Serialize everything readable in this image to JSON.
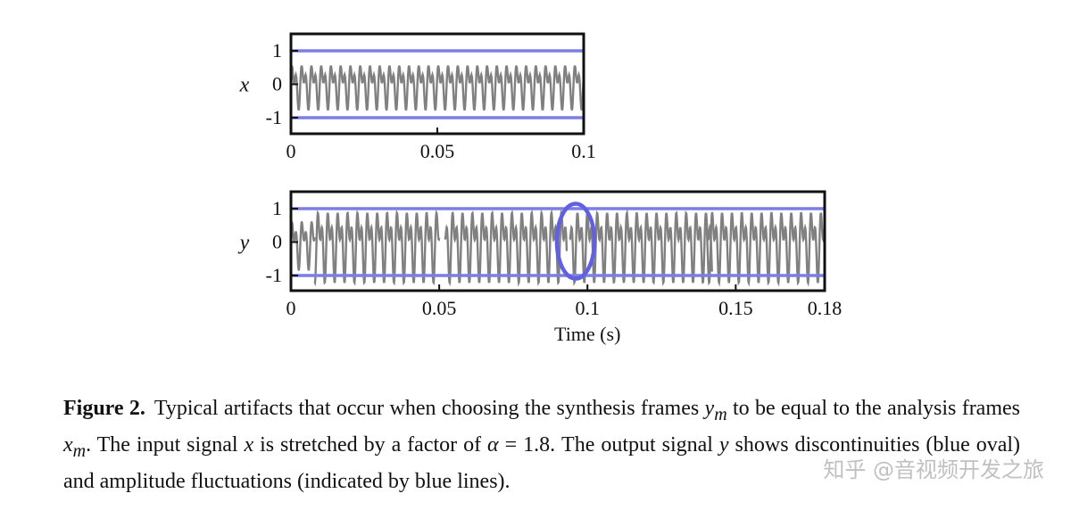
{
  "chart_data": [
    {
      "type": "line",
      "ylabel": "x",
      "xlim": [
        0,
        0.1
      ],
      "ylim": [
        -1.2,
        1.2
      ],
      "xticks": [
        "0",
        "0.05",
        "0.1"
      ],
      "yticks": [
        "1",
        "0",
        "-1"
      ],
      "reference_lines": [
        1,
        -1
      ],
      "series": [
        {
          "color": "#808080",
          "frequency_hz": 300,
          "harmonic_ratio": 2,
          "amplitude_peak": 0.8,
          "x_start": 0,
          "x_end": 0.1
        }
      ],
      "grid": false,
      "colors": {
        "signal": "#808080",
        "reference": "#7d7de6"
      }
    },
    {
      "type": "line",
      "ylabel": "y",
      "xlabel": "Time (s)",
      "xlim": [
        0,
        0.18
      ],
      "ylim": [
        -1.2,
        1.2
      ],
      "xticks": [
        "0",
        "0.05",
        "0.1",
        "0.15",
        "0.18"
      ],
      "yticks": [
        "1",
        "0",
        "-1"
      ],
      "reference_lines": [
        1,
        -1
      ],
      "segments": [
        {
          "x_start": 0.0,
          "x_end": 0.008,
          "amplitude_peak": 0.85
        },
        {
          "x_start": 0.008,
          "x_end": 0.05,
          "amplitude_peak": 1.25
        },
        {
          "x_start": 0.052,
          "x_end": 0.093,
          "amplitude_peak": 1.25
        },
        {
          "x_start": 0.094,
          "x_end": 0.142,
          "amplitude_peak": 1.25
        },
        {
          "x_start": 0.14,
          "x_end": 0.18,
          "amplitude_peak": 1.25
        }
      ],
      "frequency_hz": 300,
      "annotations": [
        {
          "type": "oval",
          "x": 0.093,
          "y": 0,
          "color": "#6060e0"
        }
      ],
      "grid": false,
      "colors": {
        "signal": "#808080",
        "reference": "#7d7de6",
        "oval": "#6060e0"
      }
    }
  ],
  "caption": {
    "label": "Figure 2.",
    "line1_pre": "Typical artifacts that occur when choosing the synthesis frames ",
    "sym_ym_base": "y",
    "sym_ym_sub": "m",
    "line1_post": " to be equal to the analysis frames ",
    "sym_xm_base": "x",
    "sym_xm_sub": "m",
    "line2_a": ". The input signal ",
    "sym_x": "x",
    "line2_b": " is stretched by a factor of ",
    "sym_alpha": "α",
    "line2_c": " = 1.8. The output signal ",
    "sym_y": "y",
    "line2_d": " shows discontinuities (blue oval) and amplitude fluctuations (indicated by blue lines)."
  },
  "watermark": "知乎 @音视频开发之旅"
}
